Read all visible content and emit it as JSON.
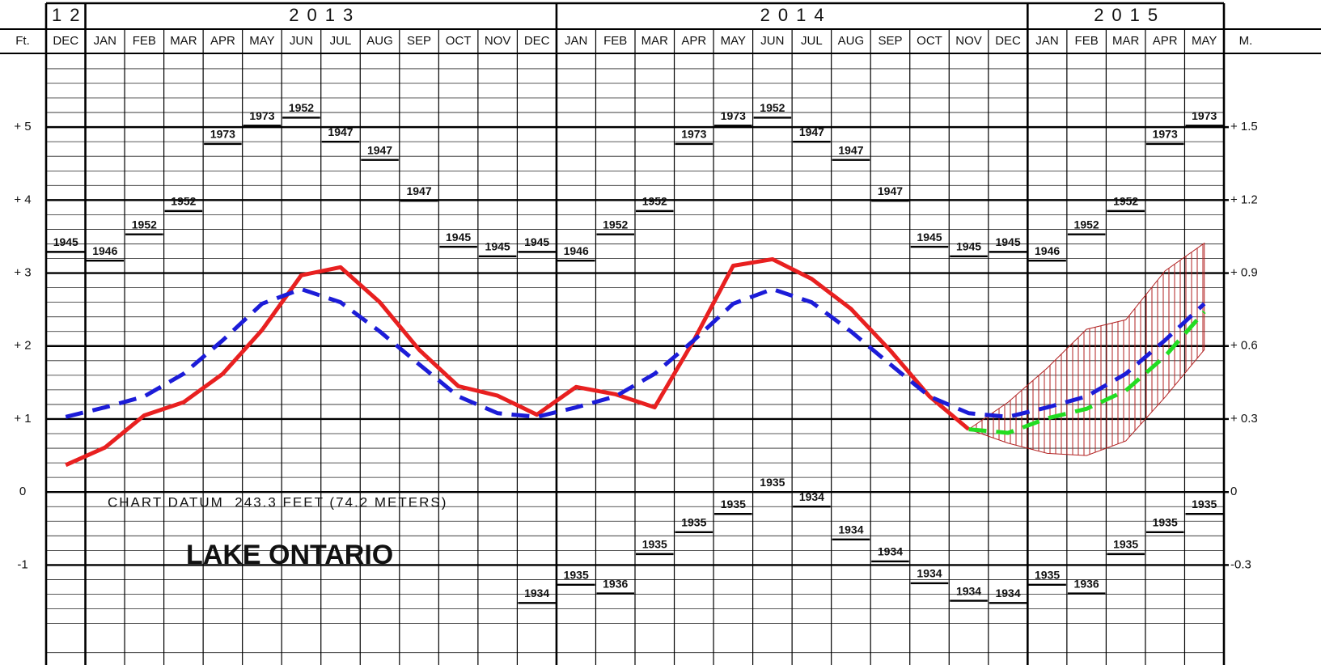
{
  "chart_data": {
    "type": "line",
    "ylabel": "Ft.",
    "y2label": "M.",
    "years": [
      "12",
      "2013",
      "2014",
      "2015"
    ],
    "categories": [
      "DEC",
      "JAN",
      "FEB",
      "MAR",
      "APR",
      "MAY",
      "JUN",
      "JUL",
      "AUG",
      "SEP",
      "OCT",
      "NOV",
      "DEC",
      "JAN",
      "FEB",
      "MAR",
      "APR",
      "MAY",
      "JUN",
      "JUL",
      "AUG",
      "SEP",
      "OCT",
      "NOV",
      "DEC",
      "JAN",
      "FEB",
      "MAR",
      "APR",
      "MAY"
    ],
    "ylim": [
      -2.37,
      6.01
    ],
    "yticks": [
      -1,
      0,
      {
        "value": 1,
        "label": "+ 1"
      },
      {
        "value": 2,
        "label": "+ 2"
      },
      {
        "value": 3,
        "label": "+ 3"
      },
      {
        "value": 4,
        "label": "+ 4"
      },
      {
        "value": 5,
        "label": "+ 5"
      }
    ],
    "y2lim": [
      -0.711,
      1.803
    ],
    "y2ticks": [
      -0.3,
      0,
      {
        "value": 0.3,
        "label": "+ 0.3"
      },
      {
        "value": 0.6,
        "label": "+ 0.6"
      },
      {
        "value": 0.9,
        "label": "+ 0.9"
      },
      {
        "value": 1.2,
        "label": "+ 1.2"
      },
      {
        "value": 1.5,
        "label": "+ 1.5"
      }
    ],
    "grid": true,
    "minor_grid_divisions": 5,
    "series": [
      {
        "color": "#e82020",
        "style": "solid",
        "values": [
          0.37,
          0.61,
          1.05,
          1.23,
          1.62,
          2.22,
          2.97,
          3.08,
          2.6,
          1.95,
          1.45,
          1.32,
          1.06,
          1.44,
          1.34,
          1.16,
          2.08,
          3.1,
          3.19,
          2.92,
          2.51,
          1.94,
          1.31,
          0.86,
          null,
          null,
          null,
          null,
          null,
          null
        ]
      },
      {
        "color": "#1c1cd8",
        "style": "dashed",
        "values": [
          1.03,
          1.16,
          1.31,
          1.62,
          2.08,
          2.58,
          2.78,
          2.6,
          2.2,
          1.75,
          1.31,
          1.08,
          1.03,
          1.16,
          1.31,
          1.62,
          2.08,
          2.58,
          2.78,
          2.6,
          2.2,
          1.75,
          1.31,
          1.08,
          1.03,
          1.16,
          1.31,
          1.62,
          2.08,
          2.58
        ]
      },
      {
        "color": "#22dd22",
        "style": "dashed",
        "values": [
          null,
          null,
          null,
          null,
          null,
          null,
          null,
          null,
          null,
          null,
          null,
          null,
          null,
          null,
          null,
          null,
          null,
          null,
          null,
          null,
          null,
          null,
          null,
          0.86,
          0.81,
          1.01,
          1.14,
          1.39,
          1.86,
          2.47
        ]
      }
    ],
    "range": {
      "color": "#b22222",
      "high": [
        null,
        null,
        null,
        null,
        null,
        null,
        null,
        null,
        null,
        null,
        null,
        null,
        null,
        null,
        null,
        null,
        null,
        null,
        null,
        null,
        null,
        null,
        null,
        0.86,
        1.23,
        1.7,
        2.23,
        2.36,
        3.03,
        3.41
      ],
      "low": [
        null,
        null,
        null,
        null,
        null,
        null,
        null,
        null,
        null,
        null,
        null,
        null,
        null,
        null,
        null,
        null,
        null,
        null,
        null,
        null,
        null,
        null,
        null,
        0.86,
        0.67,
        0.53,
        0.5,
        0.7,
        1.3,
        1.95
      ]
    },
    "record_highs": {
      "values": [
        3.29,
        3.17,
        3.53,
        3.85,
        4.77,
        5.02,
        5.13,
        4.8,
        4.55,
        3.99,
        3.36,
        3.23,
        3.29,
        3.17,
        3.53,
        3.85,
        4.77,
        5.02,
        5.13,
        4.8,
        4.55,
        3.99,
        3.36,
        3.23,
        3.29,
        3.17,
        3.53,
        3.85,
        4.77,
        5.02
      ],
      "labels": [
        "1945",
        "1946",
        "1952",
        "1952",
        "1973",
        "1973",
        "1952",
        "1947",
        "1947",
        "1947",
        "1945",
        "1945",
        "1945",
        "1946",
        "1952",
        "1952",
        "1973",
        "1973",
        "1952",
        "1947",
        "1947",
        "1947",
        "1945",
        "1945",
        "1945",
        "1946",
        "1952",
        "1952",
        "1973",
        "1973"
      ]
    },
    "record_lows": {
      "values": [
        null,
        null,
        null,
        null,
        null,
        null,
        null,
        null,
        null,
        null,
        null,
        null,
        -1.52,
        -1.27,
        -1.39,
        -0.85,
        -0.55,
        -0.3,
        0,
        -0.2,
        -0.65,
        -0.95,
        -1.25,
        -1.49,
        -1.52,
        -1.27,
        -1.39,
        -0.85,
        -0.55,
        -0.3
      ],
      "labels": [
        null,
        null,
        null,
        null,
        null,
        null,
        null,
        null,
        null,
        null,
        null,
        null,
        "1934",
        "1935",
        "1936",
        "1935",
        "1935",
        "1935",
        "1935",
        "1934",
        "1934",
        "1934",
        "1934",
        "1934",
        "1934",
        "1935",
        "1936",
        "1935",
        "1935",
        "1935"
      ]
    },
    "annotations": [
      "CHART DATUM  243.3 FEET (74.2 METERS)",
      "LAKE ONTARIO"
    ]
  }
}
